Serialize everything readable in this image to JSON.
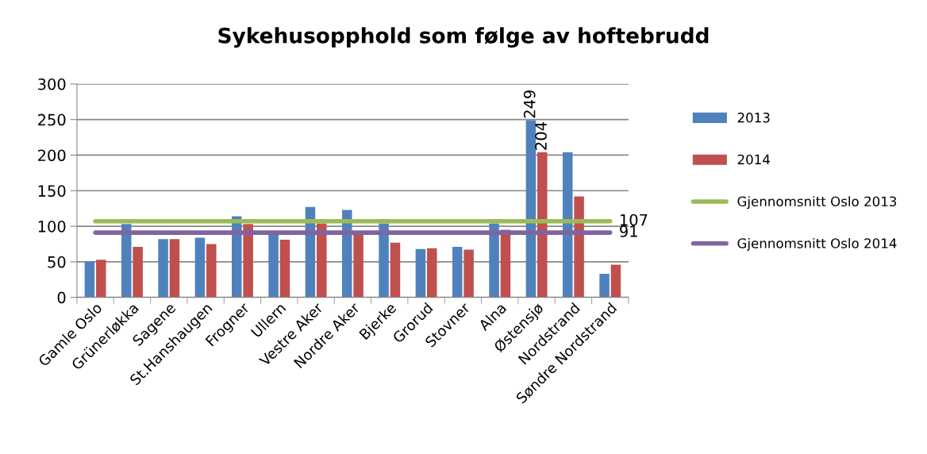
{
  "chart_data": {
    "type": "bar",
    "title": "Sykehusopphold som følge av hoftebrudd",
    "categories": [
      "Gamle Oslo",
      "Grünerløkka",
      "Sagene",
      "St.Hanshaugen",
      "Frogner",
      "Ullern",
      "Vestre Aker",
      "Nordre Aker",
      "Bjerke",
      "Grorud",
      "Stovner",
      "Alna",
      "Østensjø",
      "Nordstrand",
      "Søndre Nordstrand"
    ],
    "series": [
      {
        "name": "2013",
        "color": "#4f81bd",
        "values": [
          51,
          103,
          82,
          84,
          114,
          90,
          127,
          123,
          104,
          68,
          71,
          104,
          249,
          204,
          33
        ],
        "value_labels": [
          null,
          null,
          null,
          null,
          null,
          null,
          null,
          null,
          null,
          null,
          null,
          null,
          "249",
          null,
          null
        ]
      },
      {
        "name": "2014",
        "color": "#c0504d",
        "values": [
          53,
          71,
          82,
          75,
          103,
          81,
          104,
          90,
          77,
          69,
          67,
          95,
          204,
          142,
          46
        ],
        "value_labels": [
          null,
          null,
          null,
          null,
          null,
          null,
          null,
          null,
          null,
          null,
          null,
          null,
          "204",
          null,
          null
        ]
      },
      {
        "name": "Gjennomsnitt Oslo 2013",
        "type": "line",
        "color": "#9bbb59",
        "values": [
          107,
          107,
          107,
          107,
          107,
          107,
          107,
          107,
          107,
          107,
          107,
          107,
          107,
          107,
          107
        ],
        "value_labels": [
          null,
          null,
          null,
          null,
          null,
          null,
          null,
          null,
          null,
          null,
          null,
          null,
          null,
          null,
          "107"
        ]
      },
      {
        "name": "Gjennomsnitt Oslo 2014",
        "type": "line",
        "color": "#8064a2",
        "values": [
          91,
          91,
          91,
          91,
          91,
          91,
          91,
          91,
          91,
          91,
          91,
          91,
          91,
          91,
          91
        ],
        "value_labels": [
          null,
          null,
          null,
          null,
          null,
          null,
          null,
          null,
          null,
          null,
          null,
          null,
          null,
          null,
          "91"
        ]
      }
    ],
    "ylim": [
      0,
      300
    ],
    "yticks": [
      0,
      50,
      100,
      150,
      200,
      250,
      300
    ],
    "grid": "y",
    "legend": "right"
  }
}
